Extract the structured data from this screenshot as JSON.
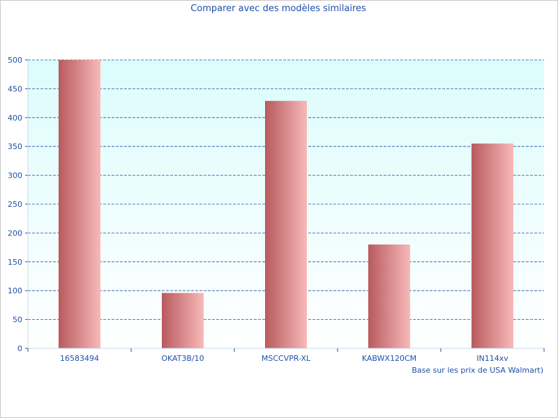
{
  "chart_data": {
    "type": "bar",
    "title": "Comparer avec des modèles similaires",
    "xlabel": "",
    "ylabel": "",
    "note": "Base sur les prix de USA Walmart)",
    "categories": [
      "16583494",
      "OKAT3B/10",
      "MSCCVPR-XL",
      "KABWX120CM",
      "IN114xv"
    ],
    "values": [
      500,
      96,
      429,
      180,
      355
    ],
    "ylim": [
      0,
      500
    ],
    "yticks": [
      0,
      50,
      100,
      150,
      200,
      250,
      300,
      350,
      400,
      450,
      500
    ],
    "grid": true,
    "legend": "none"
  },
  "colors": {
    "bar_dark": "#b85a5e",
    "bar_light": "#f8b9b9",
    "plot_top": "#dcfcfc",
    "plot_bottom": "#ffffff",
    "grid": "#1f4fa8",
    "text": "#1f4fa8"
  }
}
